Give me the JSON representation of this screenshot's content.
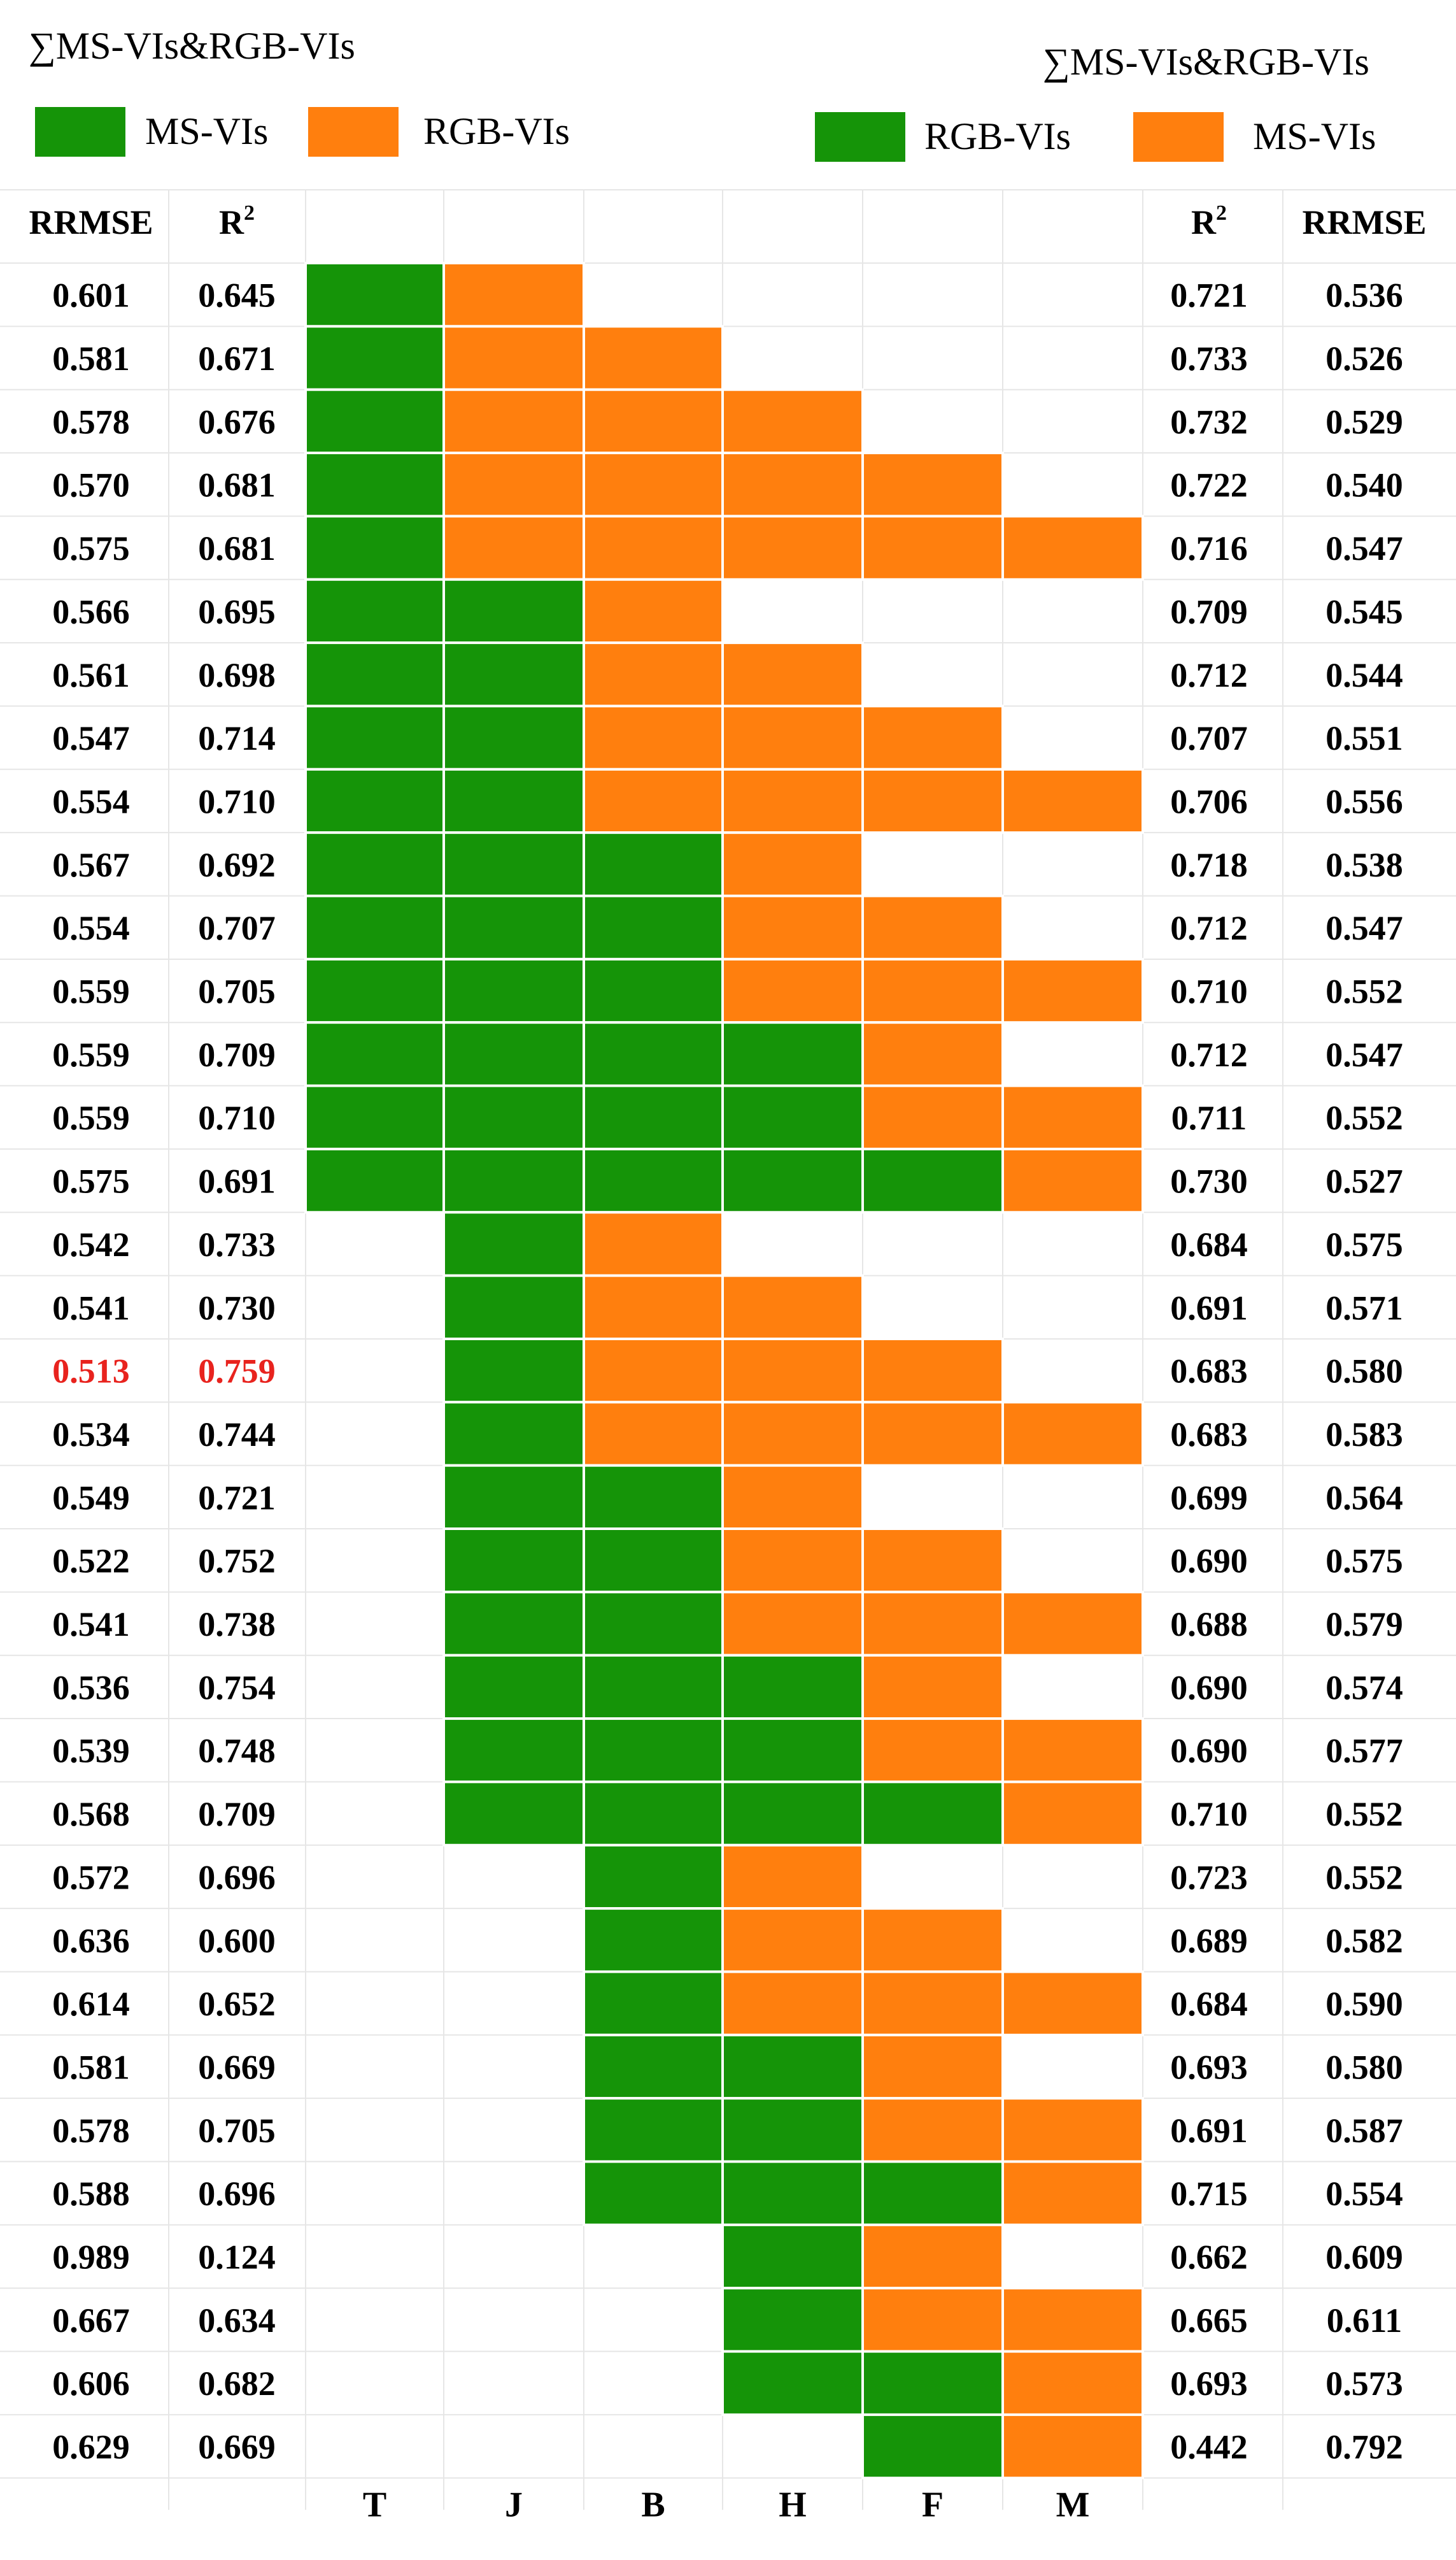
{
  "chart_data": {
    "type": "table",
    "title_left": "∑MS-VIs&RGB-VIs",
    "title_right": "∑MS-VIs&RGB-VIs",
    "legend_left": [
      {
        "label": "MS-VIs",
        "color": "#159408"
      },
      {
        "label": "RGB-VIs",
        "color": "#ff7f0e"
      }
    ],
    "legend_right": [
      {
        "label": "RGB-VIs",
        "color": "#159408"
      },
      {
        "label": "MS-VIs",
        "color": "#ff7f0e"
      }
    ],
    "headers": {
      "left_rrmse": "RRMSE",
      "left_r2": "R",
      "right_r2": "R",
      "right_rrmse": "RRMSE",
      "r2_sup": "2"
    },
    "columns": [
      "T",
      "J",
      "B",
      "H",
      "F",
      "M"
    ],
    "colors": {
      "green": "#159408",
      "orange": "#ff7f0e",
      "highlight": "#e8231e",
      "grid": "#e6e6e6"
    },
    "cell_legend": {
      "G": "green",
      "O": "orange",
      ".": "empty"
    },
    "rows": [
      {
        "pattern": "GO....",
        "left_rrmse": "0.601",
        "left_r2": "0.645",
        "right_r2": "0.721",
        "right_rrmse": "0.536"
      },
      {
        "pattern": "GOO...",
        "left_rrmse": "0.581",
        "left_r2": "0.671",
        "right_r2": "0.733",
        "right_rrmse": "0.526"
      },
      {
        "pattern": "GOOO..",
        "left_rrmse": "0.578",
        "left_r2": "0.676",
        "right_r2": "0.732",
        "right_rrmse": "0.529"
      },
      {
        "pattern": "GOOOO.",
        "left_rrmse": "0.570",
        "left_r2": "0.681",
        "right_r2": "0.722",
        "right_rrmse": "0.540"
      },
      {
        "pattern": "GOOOOO",
        "left_rrmse": "0.575",
        "left_r2": "0.681",
        "right_r2": "0.716",
        "right_rrmse": "0.547"
      },
      {
        "pattern": "GGO...",
        "left_rrmse": "0.566",
        "left_r2": "0.695",
        "right_r2": "0.709",
        "right_rrmse": "0.545"
      },
      {
        "pattern": "GGOO..",
        "left_rrmse": "0.561",
        "left_r2": "0.698",
        "right_r2": "0.712",
        "right_rrmse": "0.544"
      },
      {
        "pattern": "GGOOO.",
        "left_rrmse": "0.547",
        "left_r2": "0.714",
        "right_r2": "0.707",
        "right_rrmse": "0.551"
      },
      {
        "pattern": "GGOOOO",
        "left_rrmse": "0.554",
        "left_r2": "0.710",
        "right_r2": "0.706",
        "right_rrmse": "0.556"
      },
      {
        "pattern": "GGGO..",
        "left_rrmse": "0.567",
        "left_r2": "0.692",
        "right_r2": "0.718",
        "right_rrmse": "0.538"
      },
      {
        "pattern": "GGGOO.",
        "left_rrmse": "0.554",
        "left_r2": "0.707",
        "right_r2": "0.712",
        "right_rrmse": "0.547"
      },
      {
        "pattern": "GGGOOO",
        "left_rrmse": "0.559",
        "left_r2": "0.705",
        "right_r2": "0.710",
        "right_rrmse": "0.552"
      },
      {
        "pattern": "GGGGO.",
        "left_rrmse": "0.559",
        "left_r2": "0.709",
        "right_r2": "0.712",
        "right_rrmse": "0.547"
      },
      {
        "pattern": "GGGGOO",
        "left_rrmse": "0.559",
        "left_r2": "0.710",
        "right_r2": "0.711",
        "right_rrmse": "0.552"
      },
      {
        "pattern": "GGGGGO",
        "left_rrmse": "0.575",
        "left_r2": "0.691",
        "right_r2": "0.730",
        "right_rrmse": "0.527"
      },
      {
        "pattern": ".GO...",
        "left_rrmse": "0.542",
        "left_r2": "0.733",
        "right_r2": "0.684",
        "right_rrmse": "0.575"
      },
      {
        "pattern": ".GOO..",
        "left_rrmse": "0.541",
        "left_r2": "0.730",
        "right_r2": "0.691",
        "right_rrmse": "0.571"
      },
      {
        "pattern": ".GOOO.",
        "left_rrmse": "0.513",
        "left_r2": "0.759",
        "right_r2": "0.683",
        "right_rrmse": "0.580",
        "highlight": true
      },
      {
        "pattern": ".GOOOO",
        "left_rrmse": "0.534",
        "left_r2": "0.744",
        "right_r2": "0.683",
        "right_rrmse": "0.583"
      },
      {
        "pattern": ".GGO..",
        "left_rrmse": "0.549",
        "left_r2": "0.721",
        "right_r2": "0.699",
        "right_rrmse": "0.564"
      },
      {
        "pattern": ".GGOO.",
        "left_rrmse": "0.522",
        "left_r2": "0.752",
        "right_r2": "0.690",
        "right_rrmse": "0.575"
      },
      {
        "pattern": ".GGOOO",
        "left_rrmse": "0.541",
        "left_r2": "0.738",
        "right_r2": "0.688",
        "right_rrmse": "0.579"
      },
      {
        "pattern": ".GGGO.",
        "left_rrmse": "0.536",
        "left_r2": "0.754",
        "right_r2": "0.690",
        "right_rrmse": "0.574"
      },
      {
        "pattern": ".GGGOO",
        "left_rrmse": "0.539",
        "left_r2": "0.748",
        "right_r2": "0.690",
        "right_rrmse": "0.577"
      },
      {
        "pattern": ".GGGGO",
        "left_rrmse": "0.568",
        "left_r2": "0.709",
        "right_r2": "0.710",
        "right_rrmse": "0.552"
      },
      {
        "pattern": "..GO..",
        "left_rrmse": "0.572",
        "left_r2": "0.696",
        "right_r2": "0.723",
        "right_rrmse": "0.552"
      },
      {
        "pattern": "..GOO.",
        "left_rrmse": "0.636",
        "left_r2": "0.600",
        "right_r2": "0.689",
        "right_rrmse": "0.582"
      },
      {
        "pattern": "..GOOO",
        "left_rrmse": "0.614",
        "left_r2": "0.652",
        "right_r2": "0.684",
        "right_rrmse": "0.590"
      },
      {
        "pattern": "..GGO.",
        "left_rrmse": "0.581",
        "left_r2": "0.669",
        "right_r2": "0.693",
        "right_rrmse": "0.580"
      },
      {
        "pattern": "..GGOO",
        "left_rrmse": "0.578",
        "left_r2": "0.705",
        "right_r2": "0.691",
        "right_rrmse": "0.587"
      },
      {
        "pattern": "..GGGO",
        "left_rrmse": "0.588",
        "left_r2": "0.696",
        "right_r2": "0.715",
        "right_rrmse": "0.554"
      },
      {
        "pattern": "...GO.",
        "left_rrmse": "0.989",
        "left_r2": "0.124",
        "right_r2": "0.662",
        "right_rrmse": "0.609"
      },
      {
        "pattern": "...GOO",
        "left_rrmse": "0.667",
        "left_r2": "0.634",
        "right_r2": "0.665",
        "right_rrmse": "0.611"
      },
      {
        "pattern": "...GGO",
        "left_rrmse": "0.606",
        "left_r2": "0.682",
        "right_r2": "0.693",
        "right_rrmse": "0.573"
      },
      {
        "pattern": "....GO",
        "left_rrmse": "0.629",
        "left_r2": "0.669",
        "right_r2": "0.442",
        "right_rrmse": "0.792"
      }
    ]
  }
}
